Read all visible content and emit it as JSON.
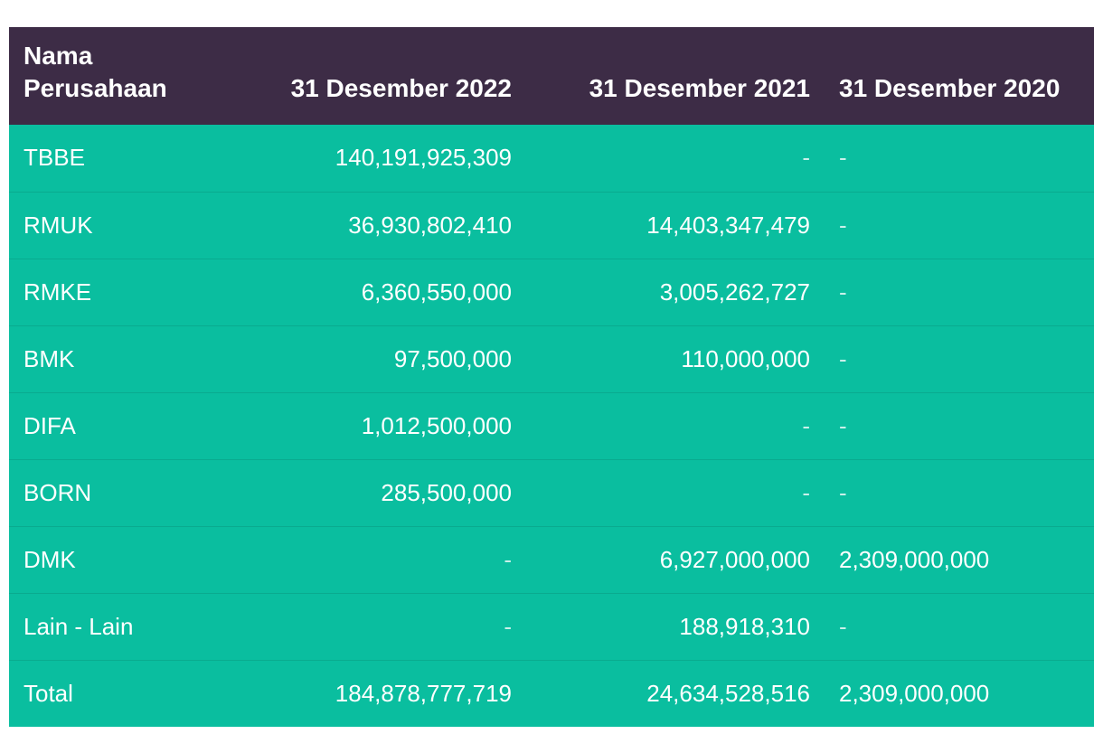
{
  "table": {
    "headers": [
      "Nama Perusahaan",
      "31 Desember 2022",
      "31 Desember 2021",
      "31 Desember 2020"
    ],
    "rows": [
      [
        "TBBE",
        "140,191,925,309",
        "-",
        "-"
      ],
      [
        "RMUK",
        "36,930,802,410",
        "14,403,347,479",
        "-"
      ],
      [
        "RMKE",
        "6,360,550,000",
        "3,005,262,727",
        "-"
      ],
      [
        "BMK",
        "97,500,000",
        "110,000,000",
        "-"
      ],
      [
        "DIFA",
        "1,012,500,000",
        "-",
        "-"
      ],
      [
        "BORN",
        "285,500,000",
        "-",
        "-"
      ],
      [
        "DMK",
        "-",
        "6,927,000,000",
        "2,309,000,000"
      ],
      [
        "Lain - Lain",
        "-",
        "188,918,310",
        "-"
      ],
      [
        "Total",
        "184,878,777,719",
        "24,634,528,516",
        "2,309,000,000"
      ]
    ]
  },
  "colors": {
    "header_bg": "#3d2c46",
    "row_bg": "#0abe9f",
    "text": "#ffffff"
  }
}
